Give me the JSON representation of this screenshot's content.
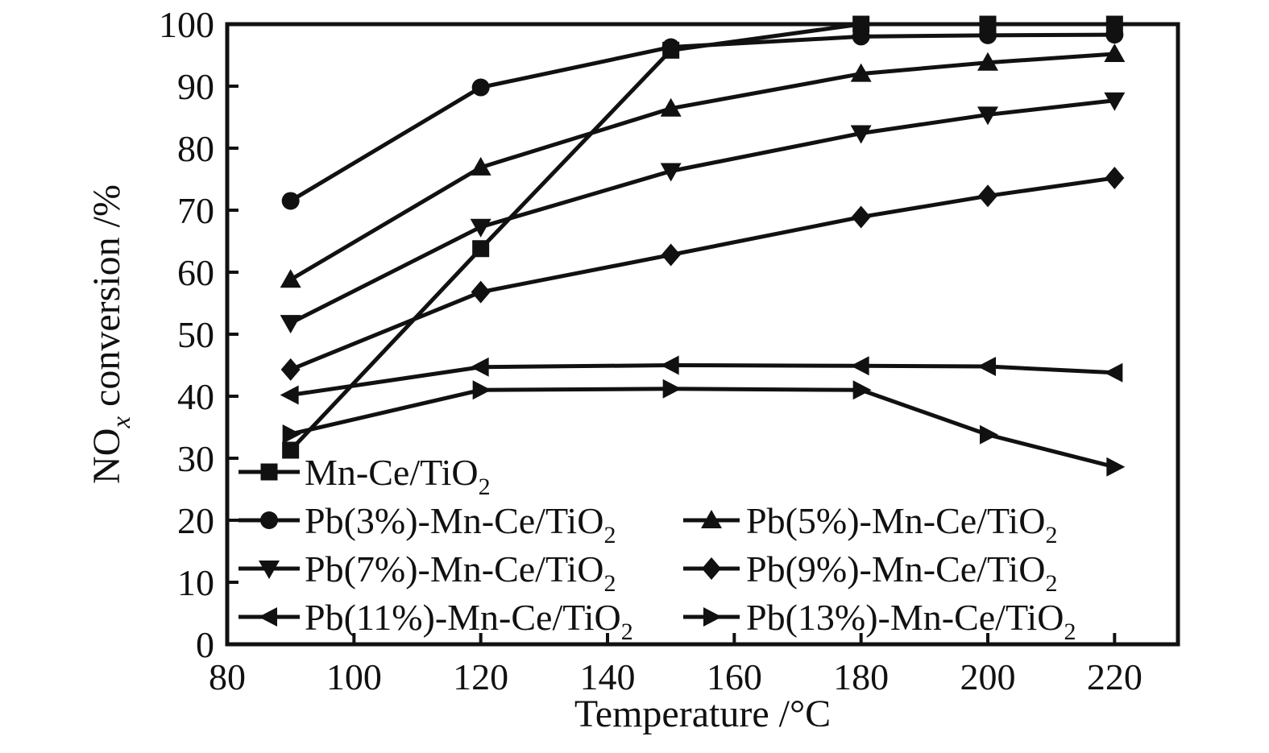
{
  "chart_data": {
    "type": "line",
    "title": "",
    "xlabel": "Temperature /°C",
    "ylabel": {
      "pre": "NO",
      "sub": "x",
      "post": " conversion /%"
    },
    "x": [
      90,
      120,
      150,
      180,
      200,
      220
    ],
    "xlim": [
      80,
      230
    ],
    "ylim": [
      0,
      100
    ],
    "x_ticks": [
      80,
      100,
      120,
      140,
      160,
      180,
      200,
      220
    ],
    "y_ticks": [
      0,
      10,
      20,
      30,
      40,
      50,
      60,
      70,
      80,
      90,
      100
    ],
    "grid": false,
    "line_color": "#111111",
    "legend": {
      "position": "bottom-left-inside",
      "columns": 2
    },
    "series": [
      {
        "name": "Mn-Ce/TiO2",
        "marker": "square",
        "label": {
          "text": "Mn-Ce/TiO",
          "sub": "2"
        },
        "values": [
          31.3,
          63.8,
          95.8,
          100,
          100,
          100
        ]
      },
      {
        "name": "Pb(3%)-Mn-Ce/TiO2",
        "marker": "circle",
        "label": {
          "text": "Pb(3%)-Mn-Ce/TiO",
          "sub": "2"
        },
        "values": [
          71.5,
          89.8,
          96.3,
          98,
          98.2,
          98.3
        ]
      },
      {
        "name": "Pb(5%)-Mn-Ce/TiO2",
        "marker": "triangle-up",
        "label": {
          "text": "Pb(5%)-Mn-Ce/TiO",
          "sub": "2"
        },
        "values": [
          58.8,
          76.9,
          86.4,
          92,
          93.8,
          95.2
        ]
      },
      {
        "name": "Pb(7%)-Mn-Ce/TiO2",
        "marker": "triangle-down",
        "label": {
          "text": "Pb(7%)-Mn-Ce/TiO",
          "sub": "2"
        },
        "values": [
          51.8,
          67.3,
          76.3,
          82.4,
          85.4,
          87.7
        ]
      },
      {
        "name": "Pb(9%)-Mn-Ce/TiO2",
        "marker": "diamond",
        "label": {
          "text": "Pb(9%)-Mn-Ce/TiO",
          "sub": "2"
        },
        "values": [
          44.3,
          56.8,
          62.8,
          68.9,
          72.3,
          75.2
        ]
      },
      {
        "name": "Pb(11%)-Mn-Ce/TiO2",
        "marker": "triangle-left",
        "label": {
          "text": "Pb(11%)-Mn-Ce/TiO",
          "sub": "2"
        },
        "values": [
          40.2,
          44.7,
          45.0,
          44.9,
          44.8,
          43.8
        ]
      },
      {
        "name": "Pb(13%)-Mn-Ce/TiO2",
        "marker": "triangle-right",
        "label": {
          "text": "Pb(13%)-Mn-Ce/TiO",
          "sub": "2"
        },
        "values": [
          33.9,
          41.0,
          41.2,
          41.0,
          33.8,
          28.6
        ]
      }
    ]
  }
}
